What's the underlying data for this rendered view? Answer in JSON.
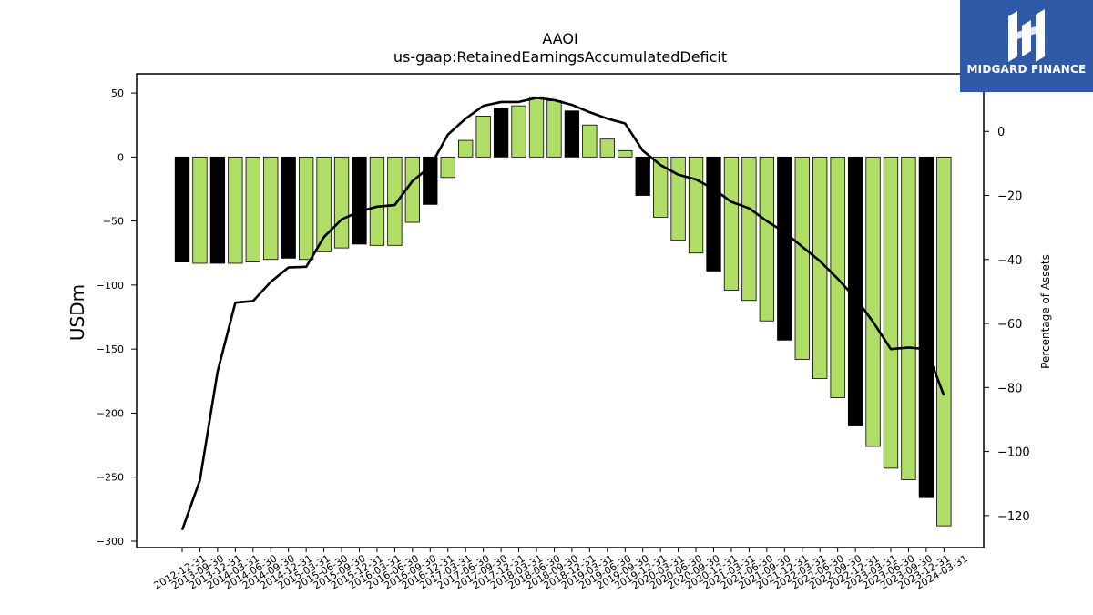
{
  "chart_data": {
    "type": "bar",
    "title": "AAOI",
    "subtitle": "us-gaap:RetainedEarningsAccumulatedDeficit",
    "ylabel": "USDm",
    "ylabel_right": "Percentage of Assets",
    "ylim": [
      -305,
      65
    ],
    "ylim_right": [
      -130,
      18
    ],
    "yticks": [
      50,
      0,
      -50,
      -100,
      -150,
      -200,
      -250,
      -300
    ],
    "yticks_right": [
      0,
      -20,
      -40,
      -60,
      -80,
      -100,
      -120
    ],
    "categories": [
      "2012-12-31",
      "2013-09-30",
      "2013-12-31",
      "2014-03-31",
      "2014-06-30",
      "2014-09-30",
      "2014-12-31",
      "2015-03-31",
      "2015-06-30",
      "2015-09-30",
      "2015-12-31",
      "2016-03-31",
      "2016-06-30",
      "2016-09-30",
      "2016-12-31",
      "2017-03-31",
      "2017-06-30",
      "2017-09-30",
      "2017-12-31",
      "2018-03-31",
      "2018-06-30",
      "2018-09-30",
      "2018-12-31",
      "2019-03-31",
      "2019-06-30",
      "2019-09-30",
      "2019-12-31",
      "2020-03-31",
      "2020-06-30",
      "2020-09-30",
      "2020-12-31",
      "2021-03-31",
      "2021-06-30",
      "2021-09-30",
      "2021-12-31",
      "2022-03-31",
      "2022-06-30",
      "2022-09-30",
      "2022-12-31",
      "2023-03-31",
      "2023-06-30",
      "2023-09-30",
      "2023-12-31",
      "2024-03-31"
    ],
    "series": [
      {
        "kind": "bar",
        "values": [
          -82,
          -83,
          -83,
          -83,
          -82,
          -80,
          -79,
          -80,
          -74,
          -71,
          -68,
          -69,
          -69,
          -51,
          -37,
          -16,
          13,
          32,
          38,
          40,
          47,
          44,
          36,
          25,
          14,
          5,
          -30,
          -47,
          -65,
          -75,
          -89,
          -104,
          -112,
          -128,
          -143,
          -158,
          -173,
          -188,
          -210,
          -226,
          -243,
          -252,
          -266,
          -288
        ],
        "highlight": [
          true,
          false,
          true,
          false,
          false,
          false,
          true,
          false,
          false,
          false,
          true,
          false,
          false,
          false,
          true,
          false,
          false,
          false,
          true,
          false,
          false,
          false,
          true,
          false,
          false,
          false,
          true,
          false,
          false,
          false,
          true,
          false,
          false,
          false,
          true,
          false,
          false,
          false,
          true,
          false,
          false,
          false,
          true,
          false
        ]
      },
      {
        "kind": "line",
        "axis": "right",
        "values": [
          -124.5,
          -109,
          -75,
          -53.5,
          -53,
          -47,
          -42.5,
          -42.3,
          -33,
          -27.5,
          -25,
          -23.5,
          -23,
          -15.5,
          -11,
          -1,
          4,
          8,
          9.2,
          9.2,
          10.5,
          9.8,
          8.3,
          6,
          4,
          2.5,
          -6,
          -10.5,
          -13.5,
          -15,
          -18,
          -22,
          -24,
          -28,
          -31.5,
          -36,
          -40.5,
          -46,
          -52,
          -59.5,
          -68,
          -67.5,
          -68,
          -82.5
        ]
      }
    ],
    "colors": {
      "bar": "#b0dd66",
      "bar_highlight": "#000000",
      "bar_edge": "#000000",
      "line": "#000000"
    }
  },
  "logo": {
    "text": "MIDGARD FINANCE",
    "bg": "#2f5aa8"
  }
}
